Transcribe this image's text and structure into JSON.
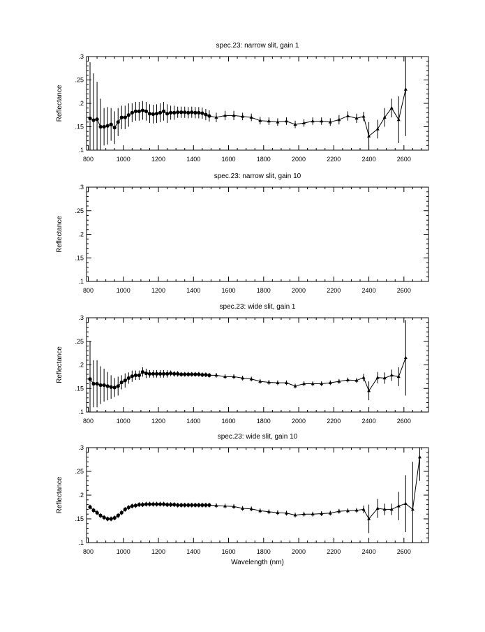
{
  "chart_data": [
    {
      "type": "scatter",
      "title": "spec.23: narrow slit, gain 1",
      "xlabel": "",
      "ylabel": "Reflectance",
      "xlim": [
        790,
        2740
      ],
      "ylim": [
        0.1,
        0.3
      ],
      "x_ticks": [
        "800",
        "1000",
        "1200",
        "1400",
        "1600",
        "1800",
        "2000",
        "2200",
        "2400",
        "2600"
      ],
      "y_ticks": [
        ".1",
        ".15",
        ".2",
        ".25",
        ".3"
      ],
      "grid": false,
      "series": [
        {
          "x": [
            810,
            830,
            850,
            870,
            890,
            910,
            930,
            950,
            970,
            990,
            1010,
            1030,
            1050,
            1070,
            1090,
            1110,
            1130,
            1150,
            1170,
            1190,
            1210,
            1230,
            1250,
            1270,
            1290,
            1310,
            1330,
            1350,
            1370,
            1390,
            1410,
            1430,
            1450,
            1470,
            1490,
            1530,
            1580,
            1630,
            1680,
            1730,
            1780,
            1830,
            1880,
            1930,
            1980,
            2030,
            2080,
            2130,
            2180,
            2230,
            2280,
            2330,
            2370,
            2400,
            2450,
            2490,
            2530,
            2570,
            2610
          ],
          "y": [
            0.168,
            0.164,
            0.166,
            0.15,
            0.15,
            0.152,
            0.155,
            0.148,
            0.16,
            0.17,
            0.17,
            0.175,
            0.18,
            0.183,
            0.183,
            0.185,
            0.183,
            0.178,
            0.177,
            0.178,
            0.18,
            0.183,
            0.178,
            0.18,
            0.18,
            0.181,
            0.181,
            0.181,
            0.18,
            0.181,
            0.18,
            0.18,
            0.179,
            0.176,
            0.173,
            0.17,
            0.174,
            0.174,
            0.172,
            0.17,
            0.163,
            0.162,
            0.16,
            0.162,
            0.155,
            0.158,
            0.162,
            0.162,
            0.16,
            0.165,
            0.173,
            0.168,
            0.172,
            0.13,
            0.145,
            0.17,
            0.19,
            0.165,
            0.23
          ],
          "err": [
            0.12,
            0.1,
            0.08,
            0.06,
            0.04,
            0.04,
            0.035,
            0.035,
            0.03,
            0.025,
            0.025,
            0.025,
            0.02,
            0.02,
            0.02,
            0.02,
            0.02,
            0.02,
            0.02,
            0.02,
            0.02,
            0.02,
            0.02,
            0.015,
            0.015,
            0.012,
            0.012,
            0.012,
            0.012,
            0.012,
            0.012,
            0.012,
            0.012,
            0.012,
            0.012,
            0.01,
            0.01,
            0.01,
            0.008,
            0.008,
            0.008,
            0.008,
            0.008,
            0.008,
            0.008,
            0.008,
            0.008,
            0.008,
            0.008,
            0.01,
            0.01,
            0.01,
            0.01,
            0.03,
            0.02,
            0.02,
            0.02,
            0.05,
            0.1
          ]
        }
      ]
    },
    {
      "type": "scatter",
      "title": "spec.23: narrow slit, gain 10",
      "xlabel": "",
      "ylabel": "Reflectance",
      "xlim": [
        790,
        2740
      ],
      "ylim": [
        0.1,
        0.3
      ],
      "x_ticks": [
        "800",
        "1000",
        "1200",
        "1400",
        "1600",
        "1800",
        "2000",
        "2200",
        "2400",
        "2600"
      ],
      "y_ticks": [
        ".1",
        ".15",
        ".2",
        ".25",
        ".3"
      ],
      "grid": false,
      "series": []
    },
    {
      "type": "scatter",
      "title": "spec.23: wide slit, gain 1",
      "xlabel": "",
      "ylabel": "Reflectance",
      "xlim": [
        790,
        2740
      ],
      "ylim": [
        0.1,
        0.3
      ],
      "x_ticks": [
        "800",
        "1000",
        "1200",
        "1400",
        "1600",
        "1800",
        "2000",
        "2200",
        "2400",
        "2600"
      ],
      "y_ticks": [
        ".1",
        ".15",
        ".2",
        ".25",
        ".3"
      ],
      "grid": false,
      "series": [
        {
          "x": [
            810,
            830,
            850,
            870,
            890,
            910,
            930,
            950,
            970,
            990,
            1010,
            1030,
            1050,
            1070,
            1090,
            1110,
            1130,
            1150,
            1170,
            1190,
            1210,
            1230,
            1250,
            1270,
            1290,
            1310,
            1330,
            1350,
            1370,
            1390,
            1410,
            1430,
            1450,
            1470,
            1490,
            1530,
            1580,
            1630,
            1680,
            1730,
            1780,
            1830,
            1880,
            1930,
            1980,
            2030,
            2080,
            2130,
            2180,
            2230,
            2280,
            2330,
            2370,
            2400,
            2450,
            2490,
            2530,
            2570,
            2610
          ],
          "y": [
            0.17,
            0.16,
            0.16,
            0.157,
            0.157,
            0.155,
            0.153,
            0.152,
            0.155,
            0.163,
            0.167,
            0.172,
            0.176,
            0.178,
            0.178,
            0.185,
            0.182,
            0.181,
            0.181,
            0.181,
            0.181,
            0.181,
            0.181,
            0.182,
            0.181,
            0.181,
            0.18,
            0.18,
            0.18,
            0.18,
            0.18,
            0.18,
            0.179,
            0.179,
            0.178,
            0.178,
            0.175,
            0.175,
            0.172,
            0.17,
            0.165,
            0.163,
            0.162,
            0.162,
            0.155,
            0.16,
            0.16,
            0.16,
            0.162,
            0.165,
            0.168,
            0.167,
            0.173,
            0.145,
            0.173,
            0.172,
            0.178,
            0.175,
            0.215
          ],
          "err": [
            0.08,
            0.05,
            0.05,
            0.04,
            0.035,
            0.03,
            0.025,
            0.02,
            0.02,
            0.015,
            0.015,
            0.012,
            0.012,
            0.01,
            0.01,
            0.01,
            0.01,
            0.008,
            0.008,
            0.008,
            0.008,
            0.008,
            0.008,
            0.006,
            0.006,
            0.006,
            0.005,
            0.005,
            0.005,
            0.005,
            0.005,
            0.005,
            0.005,
            0.005,
            0.005,
            0.005,
            0.005,
            0.005,
            0.005,
            0.005,
            0.005,
            0.005,
            0.005,
            0.005,
            0.005,
            0.005,
            0.005,
            0.005,
            0.005,
            0.005,
            0.005,
            0.005,
            0.008,
            0.02,
            0.012,
            0.012,
            0.012,
            0.02,
            0.08
          ]
        }
      ]
    },
    {
      "type": "scatter",
      "title": "spec.23: wide slit, gain 10",
      "xlabel": "Wavelength (nm)",
      "ylabel": "Reflectance",
      "xlim": [
        790,
        2740
      ],
      "ylim": [
        0.1,
        0.3
      ],
      "x_ticks": [
        "800",
        "1000",
        "1200",
        "1400",
        "1600",
        "1800",
        "2000",
        "2200",
        "2400",
        "2600"
      ],
      "y_ticks": [
        ".1",
        ".15",
        ".2",
        ".25",
        ".3"
      ],
      "grid": false,
      "series": [
        {
          "x": [
            810,
            830,
            850,
            870,
            890,
            910,
            930,
            950,
            970,
            990,
            1010,
            1030,
            1050,
            1070,
            1090,
            1110,
            1130,
            1150,
            1170,
            1190,
            1210,
            1230,
            1250,
            1270,
            1290,
            1310,
            1330,
            1350,
            1370,
            1390,
            1410,
            1430,
            1450,
            1470,
            1490,
            1530,
            1580,
            1630,
            1680,
            1730,
            1780,
            1830,
            1880,
            1930,
            1980,
            2030,
            2080,
            2130,
            2180,
            2230,
            2280,
            2330,
            2370,
            2400,
            2450,
            2490,
            2530,
            2570,
            2610,
            2650,
            2690
          ],
          "y": [
            0.175,
            0.168,
            0.163,
            0.157,
            0.153,
            0.15,
            0.15,
            0.152,
            0.157,
            0.163,
            0.17,
            0.174,
            0.177,
            0.178,
            0.18,
            0.18,
            0.181,
            0.181,
            0.181,
            0.181,
            0.181,
            0.181,
            0.18,
            0.18,
            0.18,
            0.179,
            0.179,
            0.179,
            0.179,
            0.179,
            0.179,
            0.179,
            0.179,
            0.179,
            0.179,
            0.178,
            0.177,
            0.176,
            0.172,
            0.171,
            0.167,
            0.165,
            0.163,
            0.162,
            0.158,
            0.16,
            0.16,
            0.161,
            0.162,
            0.166,
            0.167,
            0.168,
            0.17,
            0.15,
            0.172,
            0.17,
            0.17,
            0.177,
            0.182,
            0.17,
            0.28
          ],
          "err": [
            0.005,
            0.005,
            0.005,
            0.005,
            0.005,
            0.005,
            0.005,
            0.005,
            0.005,
            0.005,
            0.005,
            0.005,
            0.005,
            0.005,
            0.005,
            0.005,
            0.005,
            0.005,
            0.005,
            0.005,
            0.005,
            0.005,
            0.005,
            0.005,
            0.005,
            0.005,
            0.005,
            0.005,
            0.005,
            0.005,
            0.005,
            0.005,
            0.005,
            0.005,
            0.005,
            0.005,
            0.005,
            0.005,
            0.005,
            0.005,
            0.005,
            0.005,
            0.005,
            0.005,
            0.005,
            0.005,
            0.005,
            0.005,
            0.005,
            0.005,
            0.005,
            0.005,
            0.008,
            0.03,
            0.02,
            0.012,
            0.012,
            0.03,
            0.06,
            0.1,
            0.05
          ]
        }
      ]
    }
  ]
}
